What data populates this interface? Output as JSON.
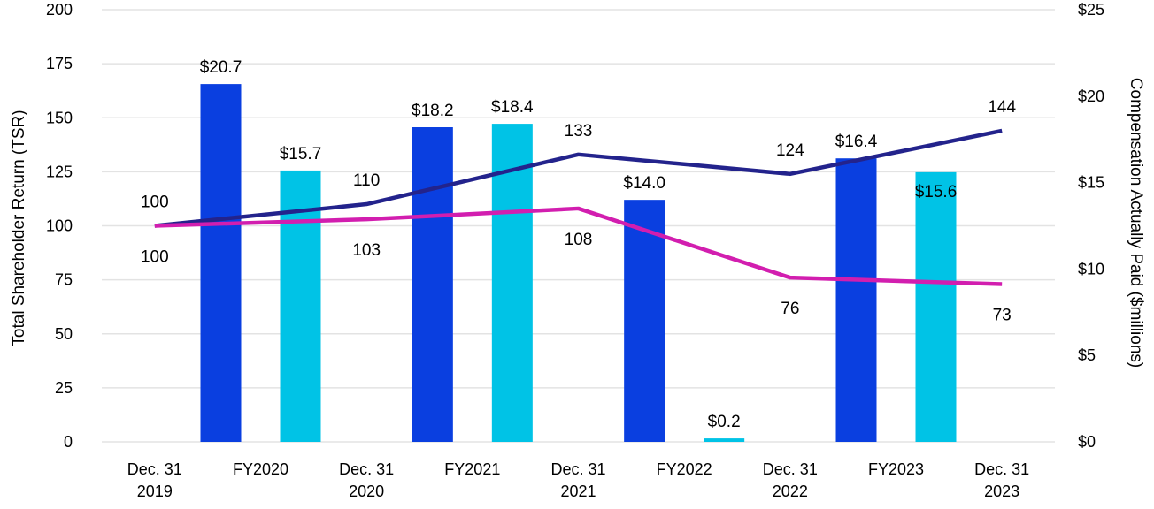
{
  "chart_data": {
    "type": "bar+line",
    "categories": [
      [
        "Dec. 31",
        "2019"
      ],
      [
        "FY2020"
      ],
      [
        "Dec. 31",
        "2020"
      ],
      [
        "FY2021"
      ],
      [
        "Dec. 31",
        "2021"
      ],
      [
        "FY2022"
      ],
      [
        "Dec. 31",
        "2022"
      ],
      [
        "FY2023"
      ],
      [
        "Dec. 31",
        "2023"
      ]
    ],
    "bar_series": [
      {
        "name": "Compensation Actually Paid (dark)",
        "color": "#0a3fe0",
        "axis": "right",
        "points": [
          {
            "category_index": 1,
            "value": 20.7,
            "label": "$20.7"
          },
          {
            "category_index": 3,
            "value": 18.2,
            "label": "$18.2"
          },
          {
            "category_index": 5,
            "value": 14.0,
            "label": "$14.0"
          },
          {
            "category_index": 7,
            "value": 16.4,
            "label": "$16.4"
          }
        ]
      },
      {
        "name": "Compensation Actually Paid (light)",
        "color": "#00c3e6",
        "axis": "right",
        "points": [
          {
            "category_index": 1,
            "value": 15.7,
            "label": "$15.7"
          },
          {
            "category_index": 3,
            "value": 18.4,
            "label": "$18.4"
          },
          {
            "category_index": 5,
            "value": 0.2,
            "label": "$0.2"
          },
          {
            "category_index": 7,
            "value": 15.6,
            "label": "$15.6"
          }
        ]
      }
    ],
    "line_series": [
      {
        "name": "TSR (navy)",
        "color": "#23238c",
        "axis": "left",
        "label_position": "above",
        "points": [
          {
            "category_index": 0,
            "value": 100,
            "label": "100"
          },
          {
            "category_index": 2,
            "value": 110,
            "label": "110"
          },
          {
            "category_index": 4,
            "value": 133,
            "label": "133"
          },
          {
            "category_index": 6,
            "value": 124,
            "label": "124"
          },
          {
            "category_index": 8,
            "value": 144,
            "label": "144"
          }
        ]
      },
      {
        "name": "TSR (magenta)",
        "color": "#d21eaf",
        "axis": "left",
        "label_position": "below",
        "points": [
          {
            "category_index": 0,
            "value": 100,
            "label": "100"
          },
          {
            "category_index": 2,
            "value": 103,
            "label": "103"
          },
          {
            "category_index": 4,
            "value": 108,
            "label": "108"
          },
          {
            "category_index": 6,
            "value": 76,
            "label": "76"
          },
          {
            "category_index": 8,
            "value": 73,
            "label": "73"
          }
        ]
      }
    ],
    "left_axis": {
      "title": "Total Shareholder Return (TSR)",
      "range": [
        0,
        200
      ],
      "ticks": [
        "0",
        "25",
        "50",
        "75",
        "100",
        "125",
        "150",
        "175",
        "200"
      ]
    },
    "right_axis": {
      "title": "Compensation Actually Paid ($millions)",
      "range": [
        0,
        25
      ],
      "ticks": [
        "$0",
        "$5",
        "$10",
        "$15",
        "$20",
        "$25"
      ]
    },
    "grid": true
  }
}
